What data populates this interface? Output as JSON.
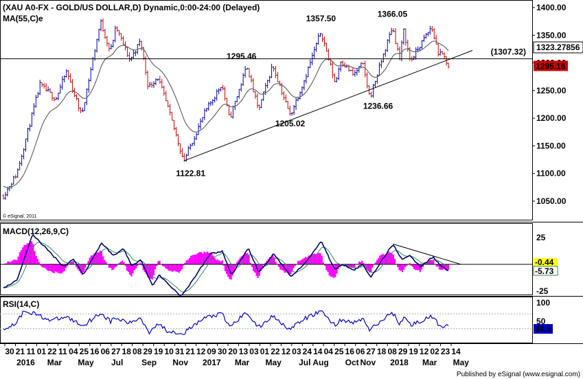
{
  "header": {
    "title": "(XAU A0-FX - GOLD/US DOLLAR,D) Dynamic,0:00-24:00 (Delayed)",
    "ma_label": "MA(55,C)e",
    "copyright": "© eSignal, 2011"
  },
  "footer": {
    "text": "Published by eSignal (www.esignal.com)"
  },
  "colors": {
    "up": "#0000aa",
    "down": "#cc0000",
    "ma": "#666666",
    "signal": "#2e8b57",
    "hist": "#ff00ff",
    "rsi": "#0000cc",
    "badge": "#cc0000"
  },
  "chart_data": [
    {
      "type": "candlestick",
      "title": "(XAU A0-FX - GOLD/US DOLLAR,D) Dynamic,0:00-24:00 (Delayed)",
      "ylim": [
        1035,
        1410
      ],
      "y_ticks": [
        "1400.00",
        "1350.00",
        "1300.00",
        "1250.00",
        "1200.00",
        "1150.00",
        "1100.00",
        "1050.00"
      ],
      "series": [
        {
          "name": "MA(55,C)e",
          "value": "1323.27856"
        }
      ],
      "current_price": "1295.16",
      "horizontal_line": {
        "value": 1307.32,
        "label": "(1307.32)"
      },
      "trendline": {
        "from": {
          "date": "2016-12-15",
          "value": 1122.81
        },
        "to": {
          "date": "2018-05-14",
          "value": 1315
        }
      },
      "price_path": [
        {
          "date": "2015-12-30",
          "value": 1060
        },
        {
          "date": "2016-01-25",
          "value": 1100
        },
        {
          "date": "2016-03-10",
          "value": 1260
        },
        {
          "date": "2016-04-10",
          "value": 1235
        },
        {
          "date": "2016-05-01",
          "value": 1285
        },
        {
          "date": "2016-05-30",
          "value": 1205
        },
        {
          "date": "2016-07-06",
          "value": 1375
        },
        {
          "date": "2016-07-25",
          "value": 1320
        },
        {
          "date": "2016-08-05",
          "value": 1365
        },
        {
          "date": "2016-09-01",
          "value": 1305
        },
        {
          "date": "2016-09-22",
          "value": 1340
        },
        {
          "date": "2016-10-07",
          "value": 1255
        },
        {
          "date": "2016-10-25",
          "value": 1275
        },
        {
          "date": "2016-11-12",
          "value": 1225
        },
        {
          "date": "2016-12-15",
          "value": 1122.81
        },
        {
          "date": "2017-01-25",
          "value": 1210
        },
        {
          "date": "2017-02-27",
          "value": 1262
        },
        {
          "date": "2017-03-14",
          "value": 1198
        },
        {
          "date": "2017-04-17",
          "value": 1295.46
        },
        {
          "date": "2017-05-09",
          "value": 1214
        },
        {
          "date": "2017-06-06",
          "value": 1296
        },
        {
          "date": "2017-07-10",
          "value": 1205.02
        },
        {
          "date": "2017-08-05",
          "value": 1265
        },
        {
          "date": "2017-09-08",
          "value": 1357.5
        },
        {
          "date": "2017-10-06",
          "value": 1262
        },
        {
          "date": "2017-10-16",
          "value": 1305
        },
        {
          "date": "2017-11-10",
          "value": 1278
        },
        {
          "date": "2017-11-28",
          "value": 1299
        },
        {
          "date": "2017-12-12",
          "value": 1236.66
        },
        {
          "date": "2018-01-25",
          "value": 1366.05
        },
        {
          "date": "2018-02-08",
          "value": 1307
        },
        {
          "date": "2018-02-16",
          "value": 1358
        },
        {
          "date": "2018-03-01",
          "value": 1303
        },
        {
          "date": "2018-04-11",
          "value": 1365
        },
        {
          "date": "2018-04-25",
          "value": 1316
        },
        {
          "date": "2018-05-04",
          "value": 1313
        },
        {
          "date": "2018-05-14",
          "value": 1295.16
        }
      ],
      "annotations": [
        {
          "text": "1357.50",
          "date": "2017-09-08",
          "value": 1357.5
        },
        {
          "text": "1366.05",
          "date": "2018-01-25",
          "value": 1366.05
        },
        {
          "text": "1295.46",
          "date": "2017-04-17",
          "value": 1295.46
        },
        {
          "text": "1236.66",
          "date": "2017-12-12",
          "value": 1236.66
        },
        {
          "text": "1205.02",
          "date": "2017-07-10",
          "value": 1205.02
        },
        {
          "text": "1122.81",
          "date": "2016-12-15",
          "value": 1122.81
        }
      ]
    },
    {
      "type": "line",
      "title": "MACD(12,26,9,C)",
      "ylim": [
        -30,
        30
      ],
      "y_ticks": [
        "25",
        "-25"
      ],
      "values": [
        "-0.44",
        "-5.73"
      ],
      "macd_path": [
        {
          "date": "2015-12-30",
          "value": -22
        },
        {
          "date": "2016-01-25",
          "value": -15
        },
        {
          "date": "2016-02-25",
          "value": 28
        },
        {
          "date": "2016-04-01",
          "value": 10
        },
        {
          "date": "2016-04-25",
          "value": -2
        },
        {
          "date": "2016-05-15",
          "value": 5
        },
        {
          "date": "2016-06-02",
          "value": -10
        },
        {
          "date": "2016-07-08",
          "value": 20
        },
        {
          "date": "2016-08-01",
          "value": 8
        },
        {
          "date": "2016-08-20",
          "value": 15
        },
        {
          "date": "2016-09-05",
          "value": -2
        },
        {
          "date": "2016-09-22",
          "value": 5
        },
        {
          "date": "2016-10-15",
          "value": -20
        },
        {
          "date": "2016-10-28",
          "value": -10
        },
        {
          "date": "2016-12-10",
          "value": -30
        },
        {
          "date": "2017-01-01",
          "value": -15
        },
        {
          "date": "2017-02-05",
          "value": 10
        },
        {
          "date": "2017-02-28",
          "value": 12
        },
        {
          "date": "2017-03-18",
          "value": -10
        },
        {
          "date": "2017-04-20",
          "value": 15
        },
        {
          "date": "2017-05-10",
          "value": -8
        },
        {
          "date": "2017-06-08",
          "value": 10
        },
        {
          "date": "2017-07-12",
          "value": -12
        },
        {
          "date": "2017-08-15",
          "value": 5
        },
        {
          "date": "2017-09-08",
          "value": 22
        },
        {
          "date": "2017-10-05",
          "value": -5
        },
        {
          "date": "2017-10-20",
          "value": 0
        },
        {
          "date": "2017-11-12",
          "value": -5
        },
        {
          "date": "2017-11-28",
          "value": 0
        },
        {
          "date": "2017-12-14",
          "value": -12
        },
        {
          "date": "2018-01-26",
          "value": 19
        },
        {
          "date": "2018-02-12",
          "value": 5
        },
        {
          "date": "2018-03-01",
          "value": 8
        },
        {
          "date": "2018-03-20",
          "value": -2
        },
        {
          "date": "2018-04-15",
          "value": 7
        },
        {
          "date": "2018-04-28",
          "value": -1
        },
        {
          "date": "2018-05-14",
          "value": -6
        }
      ],
      "trendline": {
        "from": {
          "date": "2018-01-26",
          "value": 19
        },
        "to": {
          "date": "2018-05-25",
          "value": 0
        }
      }
    },
    {
      "type": "line",
      "title": "RSI(14,C)",
      "ylim": [
        0,
        100
      ],
      "y_ticks": [
        "100",
        "50"
      ],
      "values": [
        "34.9"
      ],
      "rsi_path": [
        {
          "date": "2015-12-30",
          "value": 30
        },
        {
          "date": "2016-01-20",
          "value": 42
        },
        {
          "date": "2016-02-10",
          "value": 80
        },
        {
          "date": "2016-03-10",
          "value": 65
        },
        {
          "date": "2016-04-01",
          "value": 52
        },
        {
          "date": "2016-05-01",
          "value": 62
        },
        {
          "date": "2016-06-01",
          "value": 38
        },
        {
          "date": "2016-07-06",
          "value": 73
        },
        {
          "date": "2016-07-25",
          "value": 50
        },
        {
          "date": "2016-08-05",
          "value": 58
        },
        {
          "date": "2016-09-01",
          "value": 45
        },
        {
          "date": "2016-09-22",
          "value": 60
        },
        {
          "date": "2016-10-08",
          "value": 20
        },
        {
          "date": "2016-10-25",
          "value": 45
        },
        {
          "date": "2016-11-12",
          "value": 25
        },
        {
          "date": "2016-12-15",
          "value": 18
        },
        {
          "date": "2017-01-25",
          "value": 60
        },
        {
          "date": "2017-02-27",
          "value": 70
        },
        {
          "date": "2017-03-14",
          "value": 35
        },
        {
          "date": "2017-04-17",
          "value": 75
        },
        {
          "date": "2017-05-09",
          "value": 32
        },
        {
          "date": "2017-06-06",
          "value": 65
        },
        {
          "date": "2017-07-10",
          "value": 28
        },
        {
          "date": "2017-08-05",
          "value": 55
        },
        {
          "date": "2017-09-08",
          "value": 78
        },
        {
          "date": "2017-10-06",
          "value": 38
        },
        {
          "date": "2017-10-16",
          "value": 55
        },
        {
          "date": "2017-11-10",
          "value": 45
        },
        {
          "date": "2017-11-28",
          "value": 58
        },
        {
          "date": "2017-12-12",
          "value": 26
        },
        {
          "date": "2018-01-25",
          "value": 75
        },
        {
          "date": "2018-02-08",
          "value": 42
        },
        {
          "date": "2018-02-16",
          "value": 62
        },
        {
          "date": "2018-03-01",
          "value": 40
        },
        {
          "date": "2018-04-11",
          "value": 62
        },
        {
          "date": "2018-04-25",
          "value": 42
        },
        {
          "date": "2018-05-14",
          "value": 34.9
        }
      ]
    }
  ],
  "x_axis": {
    "day_labels": [
      "30",
      "21",
      "11",
      "01",
      "22",
      "11",
      "04",
      "25",
      "16",
      "06",
      "27",
      "18",
      "08",
      "29",
      "19",
      "10",
      "31",
      "21",
      "12",
      "09",
      "30",
      "20",
      "13",
      "03",
      "01",
      "22",
      "12",
      "03",
      "24",
      "14",
      "04",
      "25",
      "16",
      "06",
      "27",
      "18",
      "08",
      "29",
      "19",
      "12",
      "02",
      "23",
      "14"
    ],
    "month_labels": [
      "2016",
      "Mar",
      "May",
      "Jul",
      "Sep",
      "Nov",
      "2017",
      "Mar",
      "May",
      "Jul",
      "Aug",
      "Oct",
      "Nov",
      "2018",
      "Mar",
      "May"
    ]
  }
}
